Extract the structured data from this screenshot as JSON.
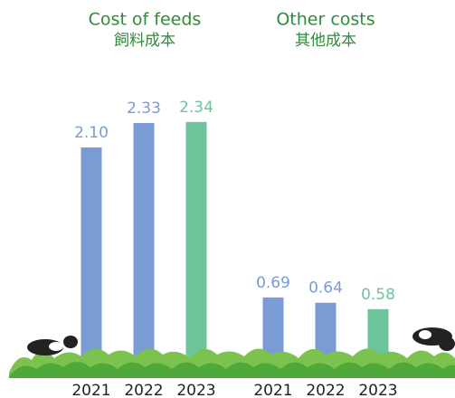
{
  "chart_data": [
    {
      "type": "bar",
      "title": "Cost of feeds",
      "subtitle": "飼料成本",
      "categories": [
        "2021",
        "2022",
        "2023"
      ],
      "values": [
        2.1,
        2.33,
        2.34
      ],
      "value_labels": [
        "2.10",
        "2.33",
        "2.34"
      ],
      "colors": [
        "#7a9bd3",
        "#7a9bd3",
        "#6cc59b"
      ]
    },
    {
      "type": "bar",
      "title": "Other costs",
      "subtitle": "其他成本",
      "categories": [
        "2021",
        "2022",
        "2023"
      ],
      "values": [
        0.69,
        0.64,
        0.58
      ],
      "colors": [
        "#7a9bd3",
        "#7a9bd3",
        "#6cc59b"
      ]
    }
  ]
}
